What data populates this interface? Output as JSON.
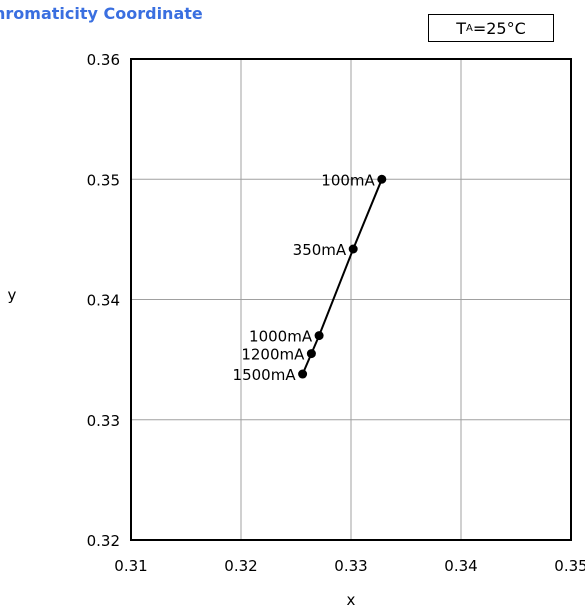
{
  "chart_data": {
    "type": "line",
    "title": "hromaticity Coordinate",
    "condition": {
      "symbol": "T",
      "subscript": "A",
      "value": "=25°C"
    },
    "xlabel": "x",
    "ylabel": "y",
    "xlim": [
      0.31,
      0.35
    ],
    "ylim": [
      0.32,
      0.36
    ],
    "xticks": [
      "0.31",
      "0.32",
      "0.33",
      "0.34",
      "0.35"
    ],
    "yticks": [
      "0.32",
      "0.33",
      "0.34",
      "0.35",
      "0.36"
    ],
    "grid": true,
    "series": [
      {
        "points": [
          {
            "label": "100mA",
            "x": 0.3328,
            "y": 0.35
          },
          {
            "label": "350mA",
            "x": 0.3302,
            "y": 0.3442
          },
          {
            "label": "1000mA",
            "x": 0.3271,
            "y": 0.337
          },
          {
            "label": "1200mA",
            "x": 0.3264,
            "y": 0.3355
          },
          {
            "label": "1500mA",
            "x": 0.3256,
            "y": 0.3338
          }
        ]
      }
    ]
  }
}
